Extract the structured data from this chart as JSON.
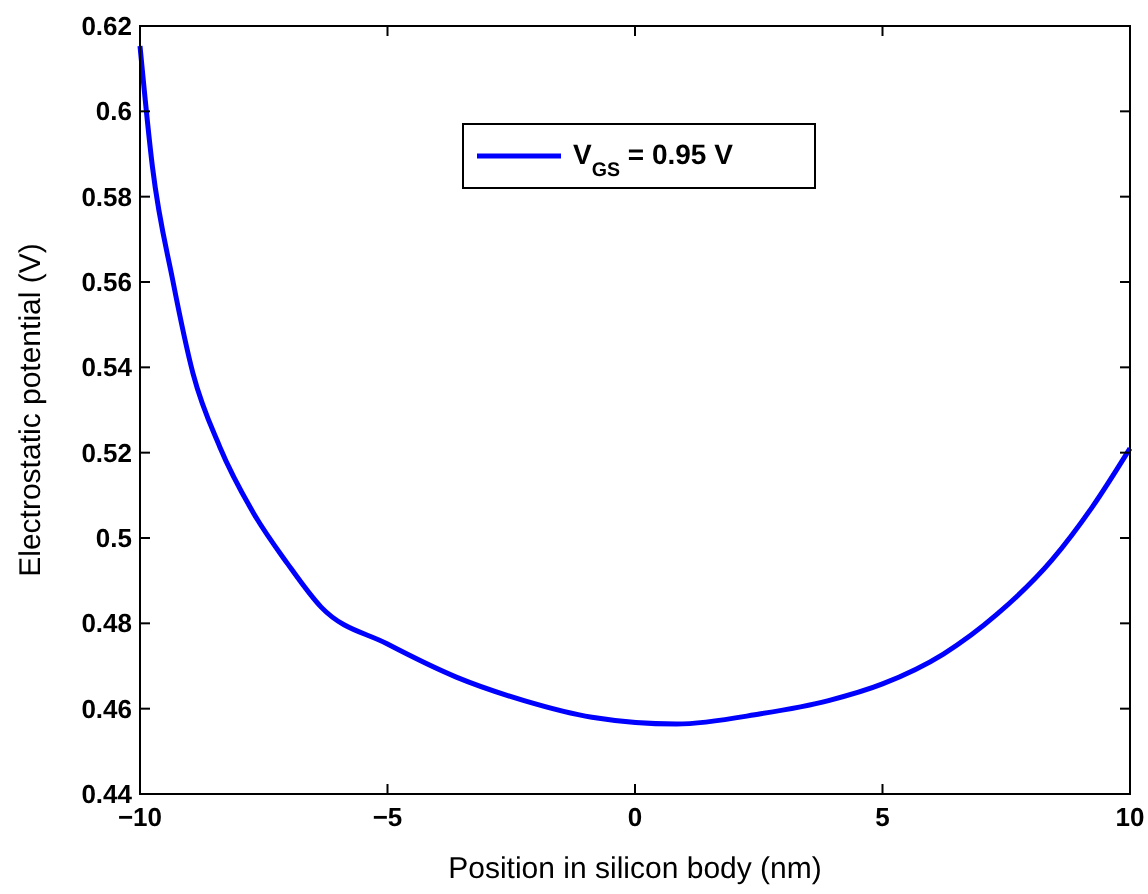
{
  "chart_data": {
    "type": "line",
    "xlabel": "Position in silicon body (nm)",
    "ylabel": "Electrostatic potential (V)",
    "xlim": [
      -10,
      10
    ],
    "ylim": [
      0.44,
      0.62
    ],
    "xticks": [
      {
        "value": -10,
        "label": "−10"
      },
      {
        "value": -5,
        "label": "−5"
      },
      0,
      5,
      10
    ],
    "yticks": [
      0.44,
      0.46,
      0.48,
      0.5,
      0.52,
      0.54,
      0.56,
      0.58,
      0.6,
      0.62
    ],
    "legend": "top",
    "grid": false,
    "line_style": "solid",
    "series": [
      {
        "name": "V$_{GS}$ = 0.95 V",
        "color": "#0000ff",
        "x": [
          -10,
          -9.75,
          -9.34,
          -8.93,
          -8.39,
          -7.7,
          -7.02,
          -6.34,
          -5.01,
          -3.61,
          -2.24,
          -0.87,
          0.84,
          2.54,
          3.91,
          5.0,
          6.23,
          7.32,
          8.42,
          9.24,
          10
        ],
        "values": [
          0.6153,
          0.5871,
          0.5605,
          0.5386,
          0.5214,
          0.5057,
          0.494,
          0.4838,
          0.4752,
          0.4674,
          0.4619,
          0.458,
          0.4564,
          0.4588,
          0.4619,
          0.4658,
          0.4728,
          0.4822,
          0.4948,
          0.5073,
          0.521
        ]
      }
    ]
  }
}
